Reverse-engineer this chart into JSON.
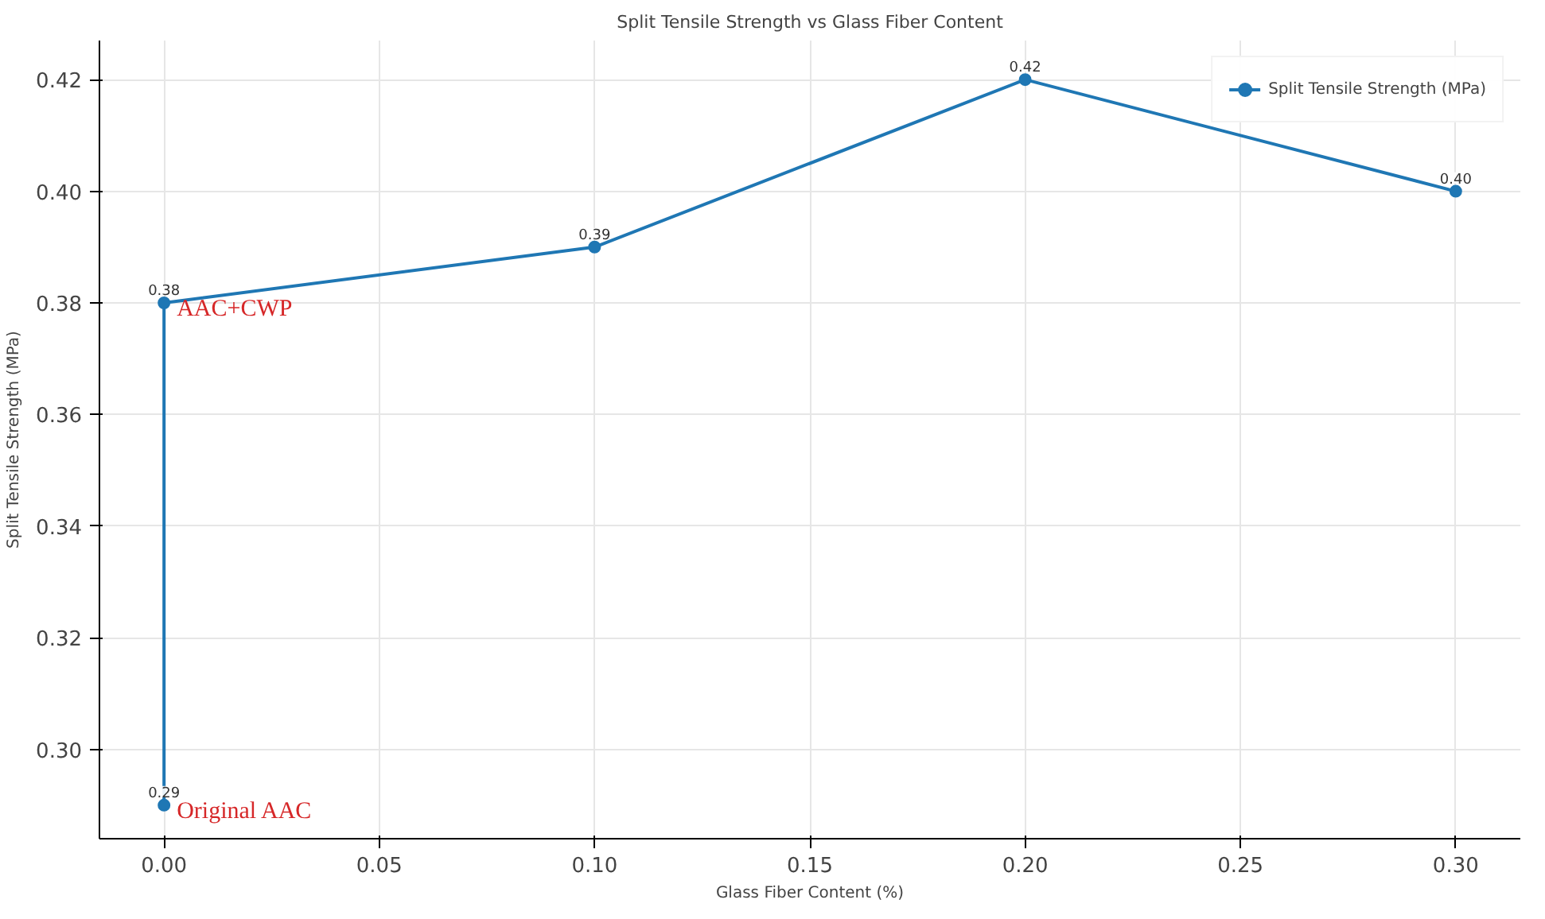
{
  "chart_data": {
    "type": "line",
    "title": "Split Tensile Strength vs Glass Fiber Content",
    "xlabel": "Glass Fiber Content (%)",
    "ylabel": "Split Tensile Strength (MPa)",
    "x": [
      0.0,
      0.0,
      0.1,
      0.2,
      0.3
    ],
    "series": [
      {
        "name": "Split Tensile Strength (MPa)",
        "color": "#1f77b4",
        "values": [
          0.29,
          0.38,
          0.39,
          0.42,
          0.4
        ],
        "value_labels": [
          "0.29",
          "0.38",
          "0.39",
          "0.42",
          "0.40"
        ]
      }
    ],
    "xlim": [
      -0.015,
      0.315
    ],
    "ylim": [
      0.284,
      0.427
    ],
    "xticks": [
      {
        "value": 0.0,
        "label": "0.00"
      },
      {
        "value": 0.05,
        "label": "0.05"
      },
      {
        "value": 0.1,
        "label": "0.10"
      },
      {
        "value": 0.15,
        "label": "0.15"
      },
      {
        "value": 0.2,
        "label": "0.20"
      },
      {
        "value": 0.25,
        "label": "0.25"
      },
      {
        "value": 0.3,
        "label": "0.30"
      }
    ],
    "yticks": [
      {
        "value": 0.3,
        "label": "0.30"
      },
      {
        "value": 0.32,
        "label": "0.32"
      },
      {
        "value": 0.34,
        "label": "0.34"
      },
      {
        "value": 0.36,
        "label": "0.36"
      },
      {
        "value": 0.38,
        "label": "0.38"
      },
      {
        "value": 0.4,
        "label": "0.40"
      },
      {
        "value": 0.42,
        "label": "0.42"
      }
    ],
    "annotations": [
      {
        "text": "AAC+CWP",
        "x": 0.0,
        "y": 0.38
      },
      {
        "text": "Original AAC",
        "x": 0.0,
        "y": 0.29
      }
    ],
    "grid": true,
    "legend": "top right",
    "marker": "circle",
    "line_style": "solid"
  }
}
